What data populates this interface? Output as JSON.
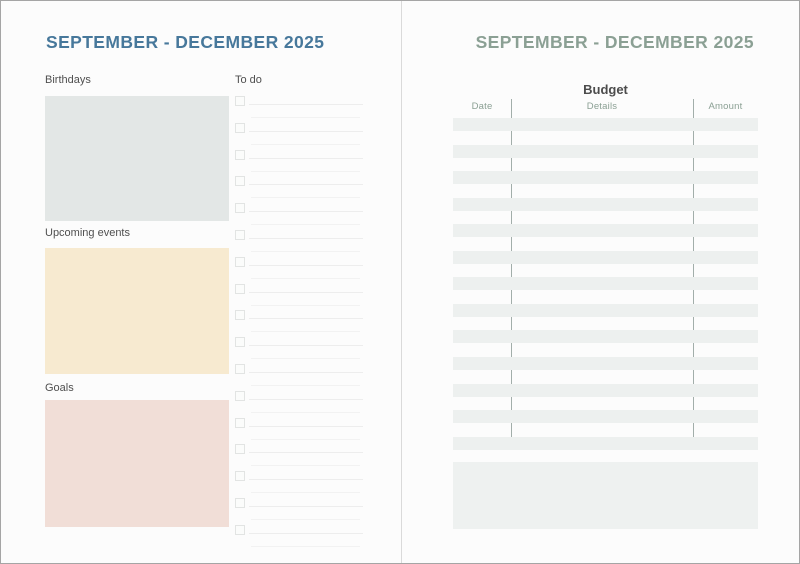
{
  "left_page": {
    "title": "SEPTEMBER - DECEMBER 2025",
    "title_color": "#47789b",
    "sections": [
      {
        "label": "Birthdays",
        "box_color": "#e3e7e6"
      },
      {
        "label": "Upcoming events",
        "box_color": "#f7ead0"
      },
      {
        "label": "Goals",
        "box_color": "#f1ded7"
      }
    ],
    "todo": {
      "label": "To do",
      "item_count": 17
    }
  },
  "right_page": {
    "title": "SEPTEMBER - DECEMBER 2025",
    "title_color": "#8ba094",
    "budget": {
      "heading": "Budget",
      "columns": [
        "Date",
        "Details",
        "Amount"
      ],
      "header_color": "#8ba094",
      "row_count": 13,
      "stripe_color": "#edf0ef",
      "column_divider_color": "#a2aeaa"
    },
    "notes_box_color": "#eef1f0"
  }
}
